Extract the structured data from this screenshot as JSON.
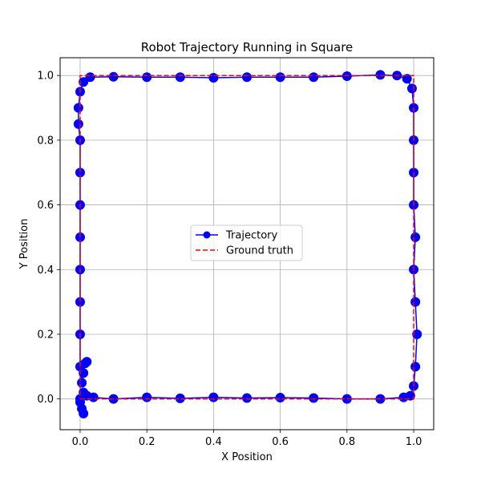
{
  "chart_data": {
    "type": "line",
    "title": "Robot Trajectory Running in Square",
    "xlabel": "X Position",
    "ylabel": "Y Position",
    "xlim": [
      -0.06,
      1.06
    ],
    "ylim": [
      -0.095,
      1.055
    ],
    "xticks": [
      0.0,
      0.2,
      0.4,
      0.6,
      0.8,
      1.0
    ],
    "yticks": [
      0.0,
      0.2,
      0.4,
      0.6,
      0.8,
      1.0
    ],
    "xtick_labels": [
      "0.0",
      "0.2",
      "0.4",
      "0.6",
      "0.8",
      "1.0"
    ],
    "ytick_labels": [
      "0.0",
      "0.2",
      "0.4",
      "0.6",
      "0.8",
      "1.0"
    ],
    "grid": true,
    "legend_position": "center",
    "series": [
      {
        "name": "Trajectory",
        "style": "solid line with circle markers",
        "color": "#0000ff",
        "points": [
          [
            0.01,
            -0.045
          ],
          [
            0.005,
            -0.03
          ],
          [
            0.0,
            -0.01
          ],
          [
            0.0,
            0.0
          ],
          [
            0.01,
            0.02
          ],
          [
            0.02,
            0.01
          ],
          [
            0.04,
            0.005
          ],
          [
            0.1,
            0.0
          ],
          [
            0.2,
            0.005
          ],
          [
            0.3,
            0.002
          ],
          [
            0.4,
            0.005
          ],
          [
            0.5,
            0.003
          ],
          [
            0.6,
            0.004
          ],
          [
            0.7,
            0.003
          ],
          [
            0.8,
            0.0
          ],
          [
            0.9,
            0.0
          ],
          [
            0.97,
            0.005
          ],
          [
            0.99,
            0.01
          ],
          [
            1.0,
            0.04
          ],
          [
            1.005,
            0.1
          ],
          [
            1.01,
            0.2
          ],
          [
            1.005,
            0.3
          ],
          [
            1.0,
            0.4
          ],
          [
            1.005,
            0.5
          ],
          [
            1.0,
            0.6
          ],
          [
            1.0,
            0.7
          ],
          [
            1.0,
            0.8
          ],
          [
            1.0,
            0.9
          ],
          [
            0.995,
            0.96
          ],
          [
            0.98,
            0.99
          ],
          [
            0.95,
            1.0
          ],
          [
            0.9,
            1.002
          ],
          [
            0.8,
            0.998
          ],
          [
            0.7,
            0.995
          ],
          [
            0.6,
            0.995
          ],
          [
            0.5,
            0.995
          ],
          [
            0.4,
            0.993
          ],
          [
            0.3,
            0.995
          ],
          [
            0.2,
            0.995
          ],
          [
            0.1,
            0.996
          ],
          [
            0.03,
            0.995
          ],
          [
            0.01,
            0.98
          ],
          [
            0.0,
            0.95
          ],
          [
            -0.005,
            0.9
          ],
          [
            -0.005,
            0.85
          ],
          [
            0.0,
            0.8
          ],
          [
            0.0,
            0.7
          ],
          [
            0.0,
            0.6
          ],
          [
            0.0,
            0.5
          ],
          [
            0.0,
            0.4
          ],
          [
            0.0,
            0.3
          ],
          [
            0.0,
            0.2
          ],
          [
            0.0,
            0.1
          ],
          [
            0.005,
            0.05
          ],
          [
            0.01,
            0.08
          ],
          [
            0.015,
            0.11
          ],
          [
            0.02,
            0.115
          ]
        ]
      },
      {
        "name": "Ground truth",
        "style": "dashed line",
        "color": "#ff0000",
        "points": [
          [
            0.0,
            0.0
          ],
          [
            1.0,
            0.0
          ],
          [
            1.0,
            1.0
          ],
          [
            0.0,
            1.0
          ],
          [
            0.0,
            0.0
          ]
        ]
      }
    ]
  }
}
